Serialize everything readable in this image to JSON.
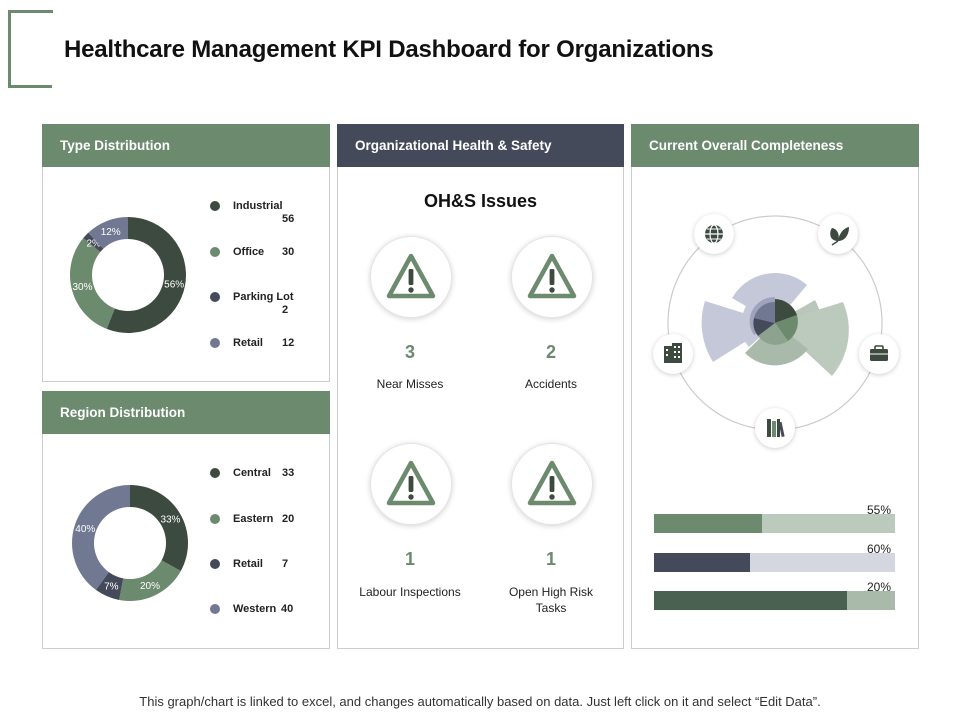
{
  "page": {
    "title": "Healthcare Management KPI Dashboard for Organizations",
    "footer": "This graph/chart is linked to excel, and changes automatically based on data.  Just left click on it and select “Edit Data”."
  },
  "colors": {
    "green": "#6b8a6e",
    "dark_green": "#3d4a3f",
    "navy": "#454a5a",
    "slate": "#717892",
    "light_green": "#bcc9bd",
    "lavender": "#c5c8d8"
  },
  "type_distribution": {
    "header": "Type Distribution",
    "legend": [
      {
        "name": "Industrial",
        "value": "56"
      },
      {
        "name": "Office",
        "value": "30"
      },
      {
        "name": "Parking Lot",
        "value": "2"
      },
      {
        "name": "Retail",
        "value": "12"
      }
    ]
  },
  "region_distribution": {
    "header": "Region Distribution",
    "legend": [
      {
        "name": "Central",
        "value": "33"
      },
      {
        "name": "Eastern",
        "value": "20"
      },
      {
        "name": "Retail",
        "value": "7"
      },
      {
        "name": "Western",
        "value": "40"
      }
    ]
  },
  "health_safety": {
    "header": "Organizational Health & Safety",
    "subtitle": "OH&S Issues",
    "items": [
      {
        "count": "3",
        "label": "Near Misses",
        "icon": "warning-icon"
      },
      {
        "count": "2",
        "label": "Accidents",
        "icon": "warning-icon"
      },
      {
        "count": "1",
        "label": "Labour Inspections",
        "icon": "warning-icon"
      },
      {
        "count": "1",
        "label": "Open High Risk Tasks",
        "icon": "warning-icon"
      }
    ]
  },
  "completeness": {
    "header": "Current Overall Completeness",
    "icons": [
      "globe-icon",
      "leaves-icon",
      "briefcase-icon",
      "books-icon",
      "building-icon"
    ],
    "bars": [
      {
        "label": "55%",
        "value": 45,
        "fill": "#6b8a6e",
        "track": "#bcc9bd"
      },
      {
        "label": "60%",
        "value": 40,
        "fill": "#454a5a",
        "track": "#d4d6e0"
      },
      {
        "label": "20%",
        "value": 80,
        "fill": "#4a6050",
        "track": "#a9b9aa"
      }
    ]
  },
  "chart_data": [
    {
      "type": "pie",
      "variant": "donut",
      "title": "Type Distribution",
      "categories": [
        "Industrial",
        "Office",
        "Parking Lot",
        "Retail"
      ],
      "values": [
        56,
        30,
        2,
        12
      ],
      "labels": [
        "56%",
        "30%",
        "2%",
        "12%"
      ],
      "colors": [
        "#3d4a3f",
        "#6b8a6e",
        "#454a5a",
        "#717892"
      ]
    },
    {
      "type": "pie",
      "variant": "donut",
      "title": "Region Distribution",
      "categories": [
        "Central",
        "Eastern",
        "Retail",
        "Western"
      ],
      "values": [
        33,
        20,
        7,
        40
      ],
      "labels": [
        "33%",
        "20%",
        "7%",
        "40%"
      ],
      "colors": [
        "#3d4a3f",
        "#6b8a6e",
        "#454a5a",
        "#717892"
      ]
    }
  ]
}
